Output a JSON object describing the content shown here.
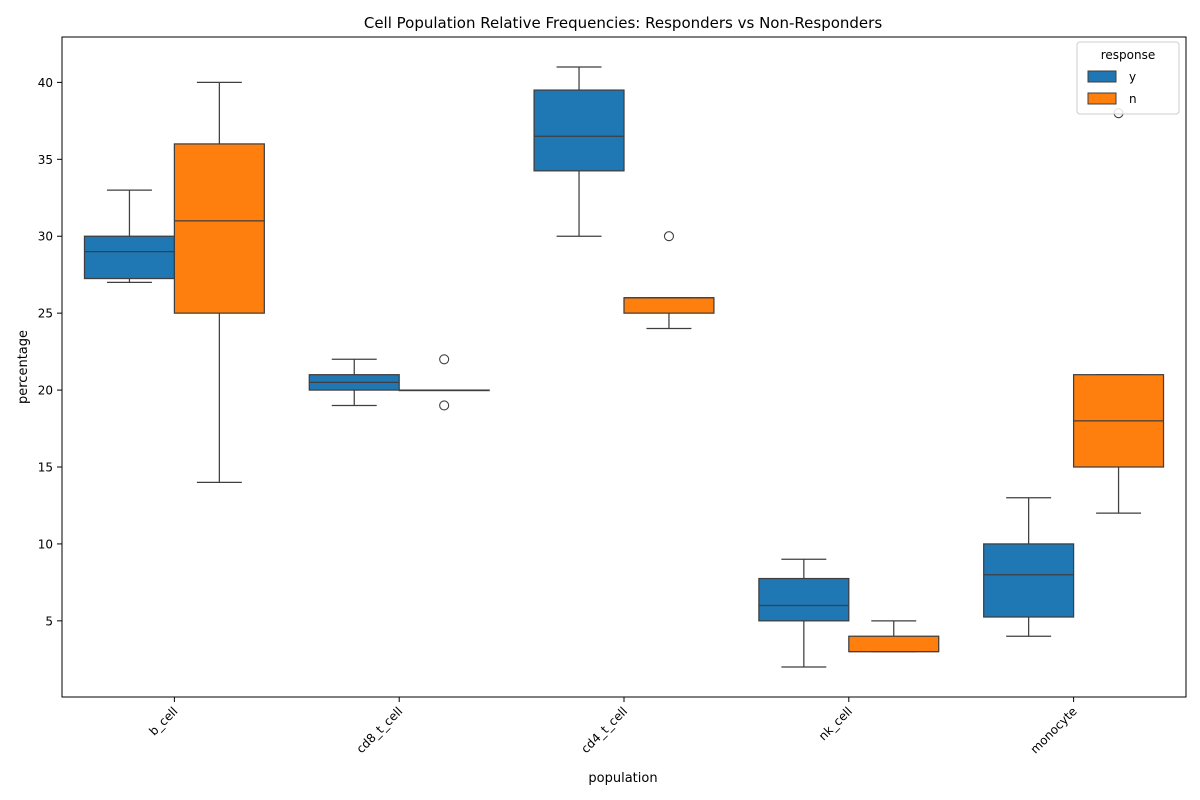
{
  "chart_data": {
    "type": "box",
    "title": "Cell Population Relative Frequencies: Responders vs Non-Responders",
    "xlabel": "population",
    "ylabel": "percentage",
    "categories": [
      "b_cell",
      "cd8_t_cell",
      "cd4_t_cell",
      "nk_cell",
      "monocyte"
    ],
    "yticks": [
      5,
      10,
      15,
      20,
      25,
      30,
      35,
      40
    ],
    "ylim": [
      0.05,
      42.95
    ],
    "grid": false,
    "legend": {
      "title": "response",
      "placement": "top-right"
    },
    "series": [
      {
        "name": "y",
        "color": "#1f77b4",
        "boxes": [
          {
            "whisker_low": 27,
            "q1": 27.25,
            "median": 29,
            "q3": 30,
            "whisker_high": 33,
            "outliers": []
          },
          {
            "whisker_low": 19,
            "q1": 20,
            "median": 20.5,
            "q3": 21,
            "whisker_high": 22,
            "outliers": []
          },
          {
            "whisker_low": 30,
            "q1": 34.25,
            "median": 36.5,
            "q3": 39.5,
            "whisker_high": 41,
            "outliers": []
          },
          {
            "whisker_low": 2,
            "q1": 5,
            "median": 6,
            "q3": 7.75,
            "whisker_high": 9,
            "outliers": []
          },
          {
            "whisker_low": 4,
            "q1": 5.25,
            "median": 8,
            "q3": 10,
            "whisker_high": 13,
            "outliers": []
          }
        ]
      },
      {
        "name": "n",
        "color": "#ff7f0e",
        "boxes": [
          {
            "whisker_low": 14,
            "q1": 25,
            "median": 31,
            "q3": 36,
            "whisker_high": 40,
            "outliers": []
          },
          {
            "whisker_low": 20,
            "q1": 20,
            "median": 20,
            "q3": 20,
            "whisker_high": 20,
            "outliers": [
              19,
              22
            ]
          },
          {
            "whisker_low": 24,
            "q1": 25,
            "median": 26,
            "q3": 26,
            "whisker_high": 26,
            "outliers": [
              30
            ]
          },
          {
            "whisker_low": 3,
            "q1": 3,
            "median": 3,
            "q3": 4,
            "whisker_high": 5,
            "outliers": []
          },
          {
            "whisker_low": 12,
            "q1": 15,
            "median": 18,
            "q3": 21,
            "whisker_high": 21,
            "outliers": [
              38
            ]
          }
        ]
      }
    ]
  }
}
